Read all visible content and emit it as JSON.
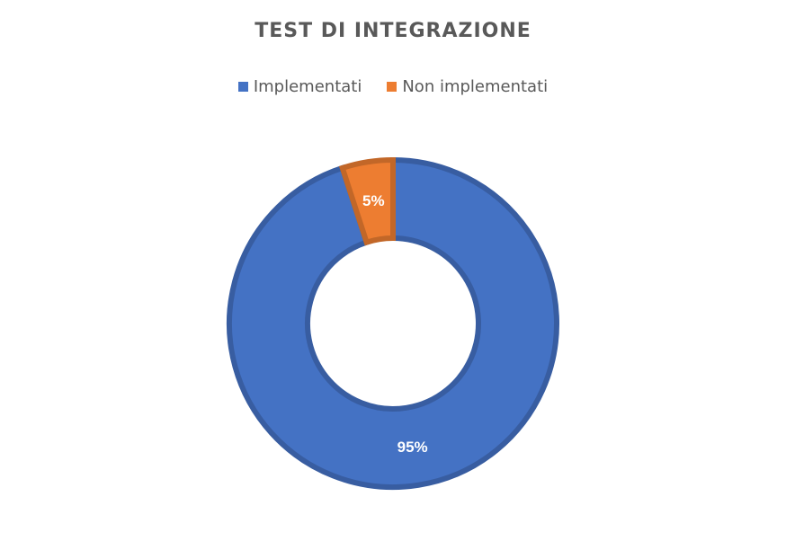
{
  "chart_data": {
    "type": "pie",
    "title": "TEST DI INTEGRAZIONE",
    "categories": [
      "Implementati",
      "Non implementati"
    ],
    "values": [
      95,
      5
    ],
    "data_labels": [
      "95%",
      "5%"
    ],
    "colors": [
      "#4472C4",
      "#ED7D31"
    ],
    "legend_position": "top",
    "donut": true
  }
}
